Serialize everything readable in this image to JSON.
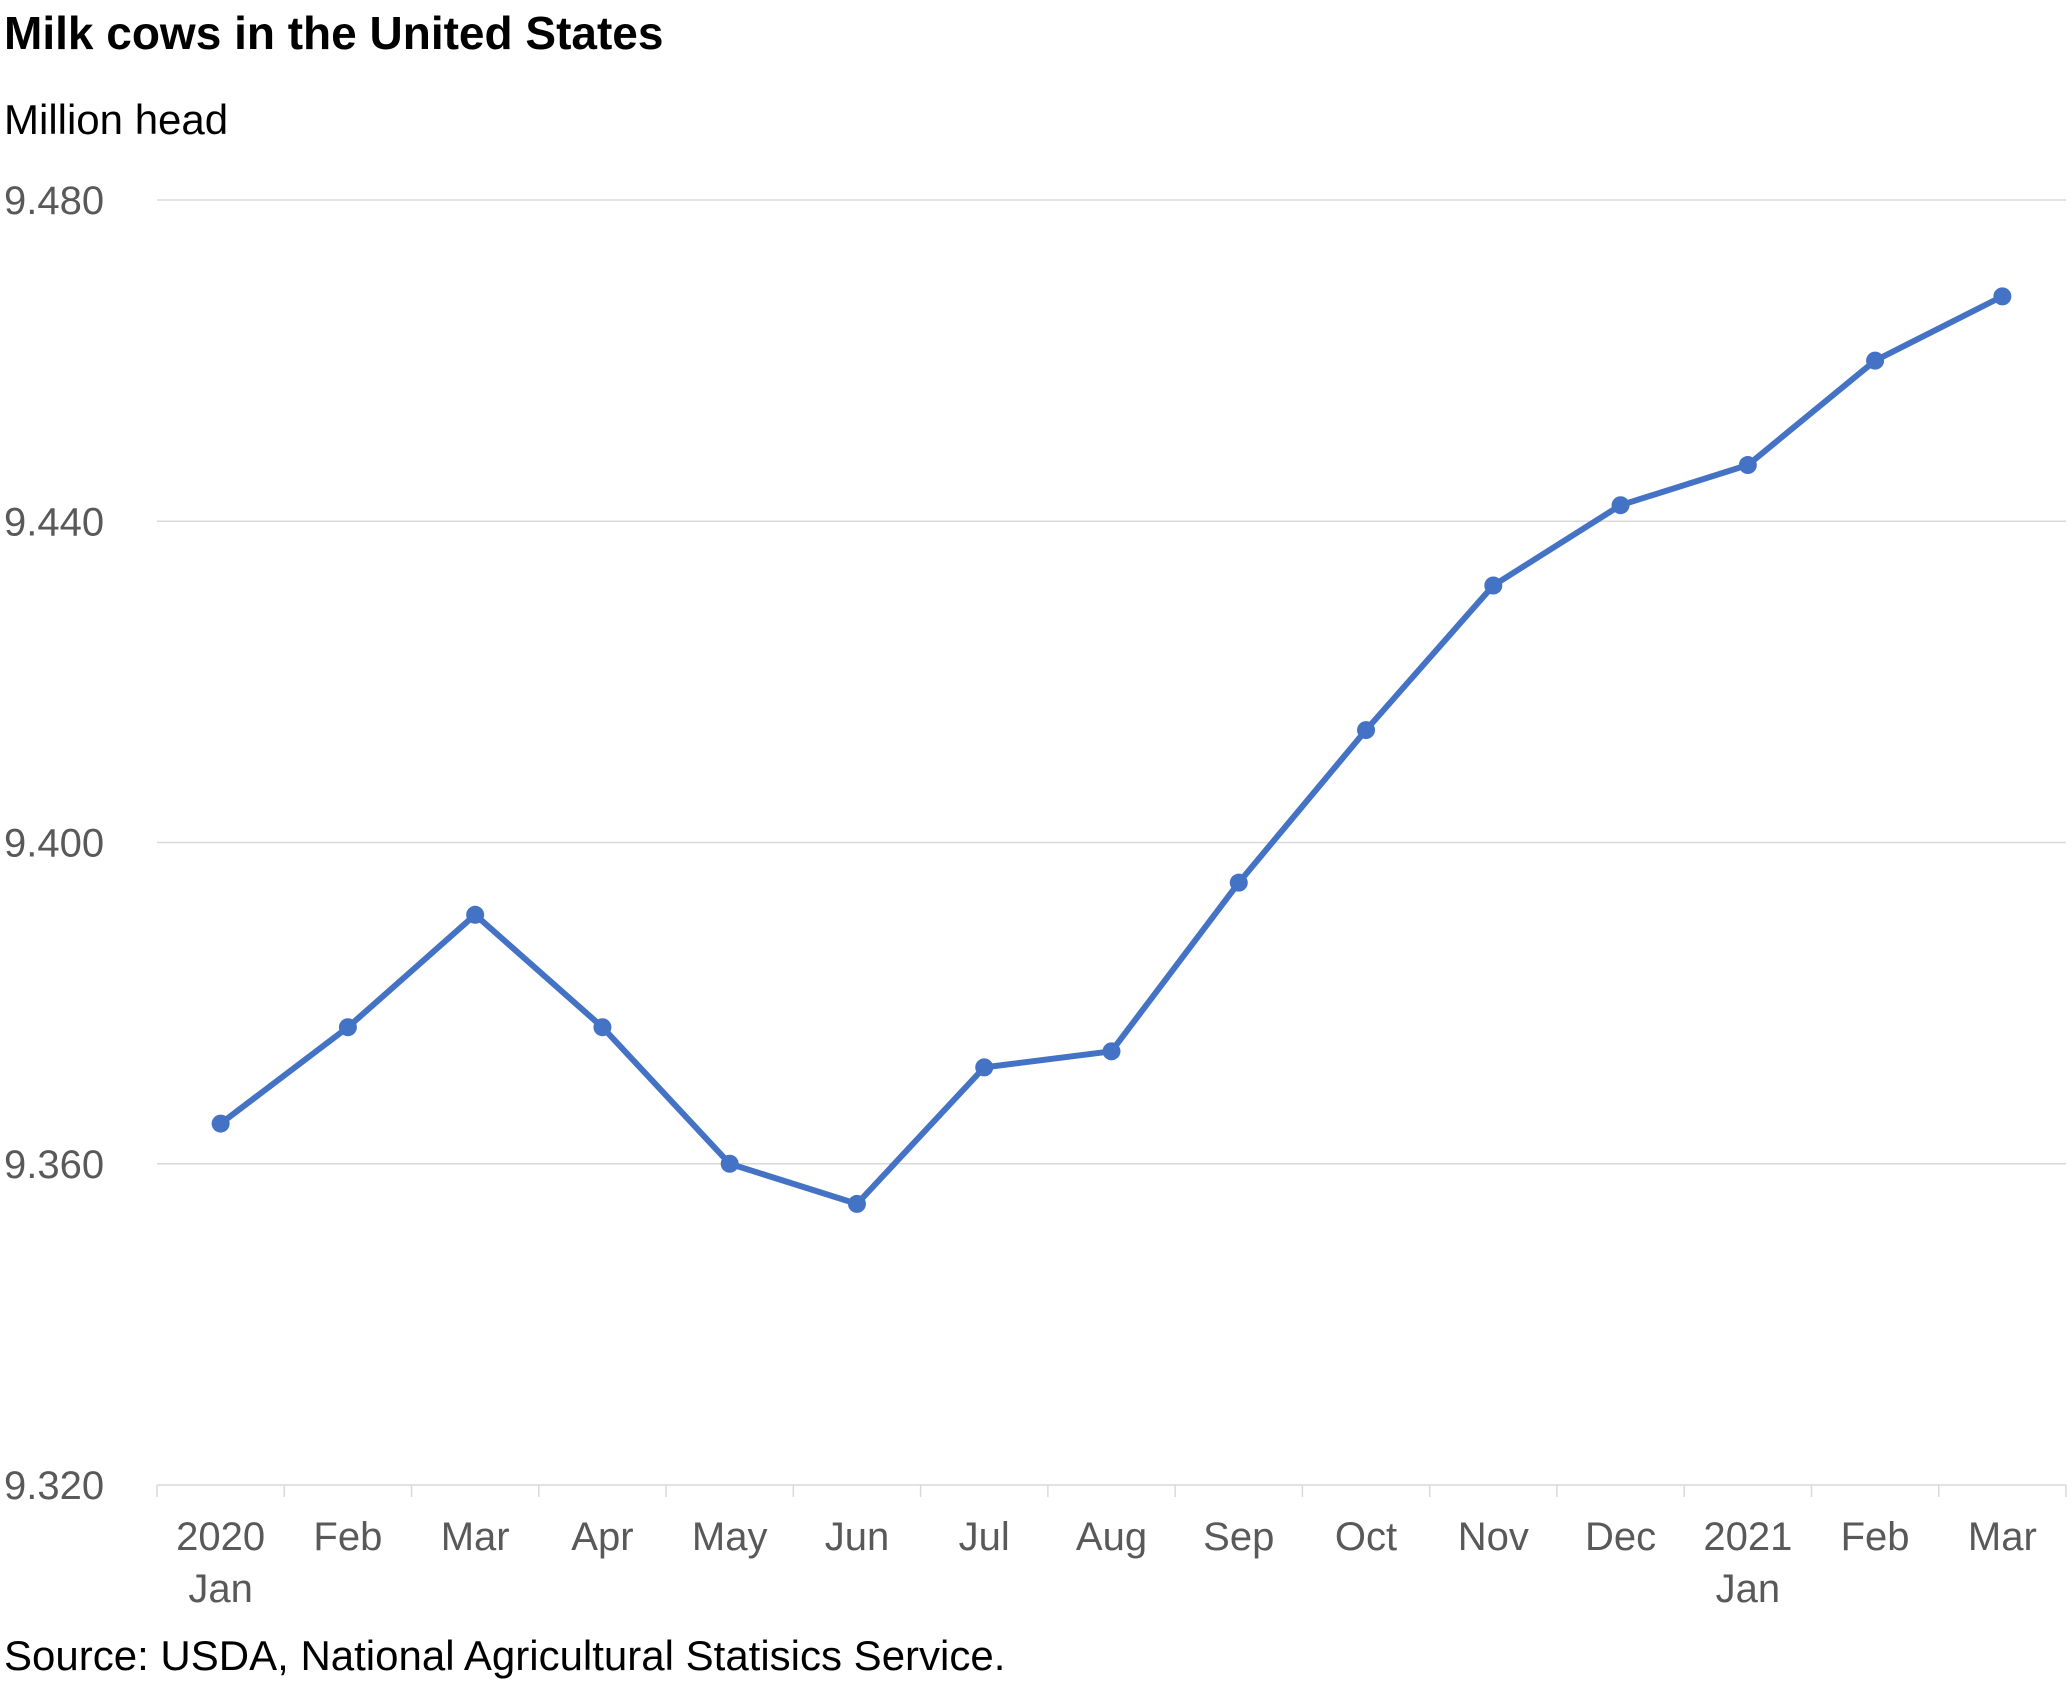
{
  "chart_data": {
    "type": "line",
    "title": "Milk cows in the United States",
    "subtitle": "Million head",
    "source": "Source: USDA, National Agricultural Statisics Service.",
    "x": [
      "2020 Jan",
      "Feb",
      "Mar",
      "Apr",
      "May",
      "Jun",
      "Jul",
      "Aug",
      "Sep",
      "Oct",
      "Nov",
      "Dec",
      "2021 Jan",
      "Feb",
      "Mar"
    ],
    "x_tick_labels": [
      [
        "2020",
        "Jan"
      ],
      [
        "Feb"
      ],
      [
        "Mar"
      ],
      [
        "Apr"
      ],
      [
        "May"
      ],
      [
        "Jun"
      ],
      [
        "Jul"
      ],
      [
        "Aug"
      ],
      [
        "Sep"
      ],
      [
        "Oct"
      ],
      [
        "Nov"
      ],
      [
        "Dec"
      ],
      [
        "2021",
        "Jan"
      ],
      [
        "Feb"
      ],
      [
        "Mar"
      ]
    ],
    "series": [
      {
        "values": [
          9.365,
          9.377,
          9.391,
          9.377,
          9.36,
          9.355,
          9.372,
          9.374,
          9.395,
          9.414,
          9.432,
          9.442,
          9.447,
          9.46,
          9.468
        ]
      }
    ],
    "ylim": [
      9.32,
      9.48
    ],
    "yticks": [
      "9.320",
      "9.360",
      "9.400",
      "9.440",
      "9.480"
    ],
    "grid": true,
    "line_color": "#4472C4",
    "grid_color": "#D9D9D9"
  }
}
